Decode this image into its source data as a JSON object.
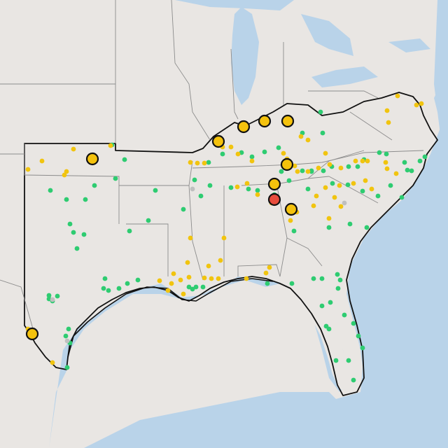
{
  "colors": {
    "water": "#b9d3e9",
    "land": "#e9e6e3",
    "status_green": "#2ecc71",
    "status_yellow": "#f1c40f",
    "status_red": "#e74c3c",
    "marker_yellow": "#f4c20d",
    "border": "#111111"
  },
  "legend_levels": [
    "green",
    "yellow",
    "red"
  ]
}
